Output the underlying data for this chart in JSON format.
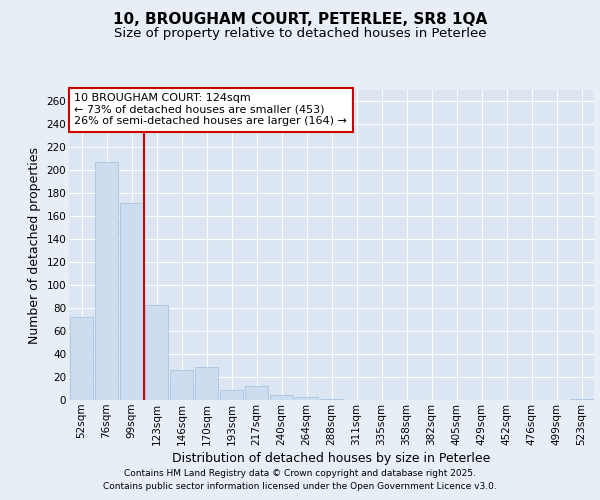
{
  "title": "10, BROUGHAM COURT, PETERLEE, SR8 1QA",
  "subtitle": "Size of property relative to detached houses in Peterlee",
  "xlabel": "Distribution of detached houses by size in Peterlee",
  "ylabel": "Number of detached properties",
  "footnote1": "Contains HM Land Registry data © Crown copyright and database right 2025.",
  "footnote2": "Contains public sector information licensed under the Open Government Licence v3.0.",
  "categories": [
    "52sqm",
    "76sqm",
    "99sqm",
    "123sqm",
    "146sqm",
    "170sqm",
    "193sqm",
    "217sqm",
    "240sqm",
    "264sqm",
    "288sqm",
    "311sqm",
    "335sqm",
    "358sqm",
    "382sqm",
    "405sqm",
    "429sqm",
    "452sqm",
    "476sqm",
    "499sqm",
    "523sqm"
  ],
  "values": [
    72,
    207,
    172,
    83,
    26,
    29,
    9,
    12,
    4,
    3,
    1,
    0,
    0,
    0,
    0,
    0,
    0,
    0,
    0,
    0,
    1
  ],
  "bar_color": "#ccddf0",
  "bar_edge_color": "#aac4e0",
  "annotation_title": "10 BROUGHAM COURT: 124sqm",
  "annotation_line1": "← 73% of detached houses are smaller (453)",
  "annotation_line2": "26% of semi-detached houses are larger (164) →",
  "annotation_box_color": "#ffffff",
  "annotation_box_edge": "#cc0000",
  "vline_color": "#cc0000",
  "vline_x_index": 2.5,
  "ylim": [
    0,
    270
  ],
  "yticks": [
    0,
    20,
    40,
    60,
    80,
    100,
    120,
    140,
    160,
    180,
    200,
    220,
    240,
    260
  ],
  "background_color": "#e8eef5",
  "plot_background": "#dce6f2",
  "grid_color": "#ffffff",
  "title_fontsize": 11,
  "subtitle_fontsize": 9.5,
  "axis_label_fontsize": 9,
  "tick_fontsize": 7.5,
  "annotation_fontsize": 8,
  "footnote_fontsize": 6.5
}
